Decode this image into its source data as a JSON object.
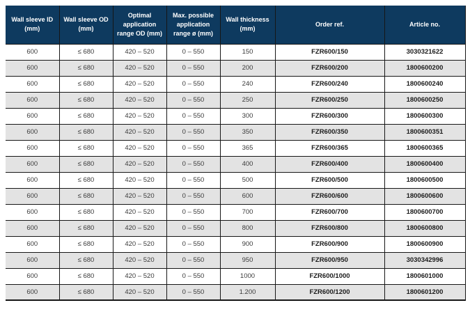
{
  "page": {
    "background": "#ffffff"
  },
  "table": {
    "style": {
      "header_bg": "#0e3a5f",
      "header_text": "#ffffff",
      "row_bg": "#ffffff",
      "row_alt_bg": "#e3e3e3",
      "border_color": "#161616",
      "body_text": "#3c3c3c",
      "bold_text": "#1c1c1c"
    },
    "columns": [
      {
        "key": "wall-sleeve-id",
        "label": "Wall sleeve ID (mm)",
        "bold": false
      },
      {
        "key": "wall-sleeve-od",
        "label": "Wall sleeve OD (mm)",
        "bold": false
      },
      {
        "key": "optimal-application-range-od",
        "label": "Optimal application range OD (mm)",
        "bold": false
      },
      {
        "key": "max-possible-application-range",
        "label": "Max. possible application range ø (mm)",
        "bold": false
      },
      {
        "key": "wall-thickness",
        "label": "Wall thickness (mm)",
        "bold": false
      },
      {
        "key": "order-ref",
        "label": "Order ref.",
        "bold": true
      },
      {
        "key": "article-no",
        "label": "Article no.",
        "bold": true
      }
    ],
    "rows": [
      [
        "600",
        "≤ 680",
        "420 – 520",
        "0 – 550",
        "150",
        "FZR600/150",
        "3030321622"
      ],
      [
        "600",
        "≤ 680",
        "420 – 520",
        "0 – 550",
        "200",
        "FZR600/200",
        "1800600200"
      ],
      [
        "600",
        "≤ 680",
        "420 – 520",
        "0 – 550",
        "240",
        "FZR600/240",
        "1800600240"
      ],
      [
        "600",
        "≤ 680",
        "420 – 520",
        "0 – 550",
        "250",
        "FZR600/250",
        "1800600250"
      ],
      [
        "600",
        "≤ 680",
        "420 – 520",
        "0 – 550",
        "300",
        "FZR600/300",
        "1800600300"
      ],
      [
        "600",
        "≤ 680",
        "420 – 520",
        "0 – 550",
        "350",
        "FZR600/350",
        "1800600351"
      ],
      [
        "600",
        "≤ 680",
        "420 – 520",
        "0 – 550",
        "365",
        "FZR600/365",
        "1800600365"
      ],
      [
        "600",
        "≤ 680",
        "420 – 520",
        "0 – 550",
        "400",
        "FZR600/400",
        "1800600400"
      ],
      [
        "600",
        "≤ 680",
        "420 – 520",
        "0 – 550",
        "500",
        "FZR600/500",
        "1800600500"
      ],
      [
        "600",
        "≤ 680",
        "420 – 520",
        "0 – 550",
        "600",
        "FZR600/600",
        "1800600600"
      ],
      [
        "600",
        "≤ 680",
        "420 – 520",
        "0 – 550",
        "700",
        "FZR600/700",
        "1800600700"
      ],
      [
        "600",
        "≤ 680",
        "420 – 520",
        "0 – 550",
        "800",
        "FZR600/800",
        "1800600800"
      ],
      [
        "600",
        "≤ 680",
        "420 – 520",
        "0 – 550",
        "900",
        "FZR600/900",
        "1800600900"
      ],
      [
        "600",
        "≤ 680",
        "420 – 520",
        "0 – 550",
        "950",
        "FZR600/950",
        "3030342996"
      ],
      [
        "600",
        "≤ 680",
        "420 – 520",
        "0 – 550",
        "1000",
        "FZR600/1000",
        "1800601000"
      ],
      [
        "600",
        "≤ 680",
        "420 – 520",
        "0 – 550",
        "1.200",
        "FZR600/1200",
        "1800601200"
      ]
    ]
  }
}
